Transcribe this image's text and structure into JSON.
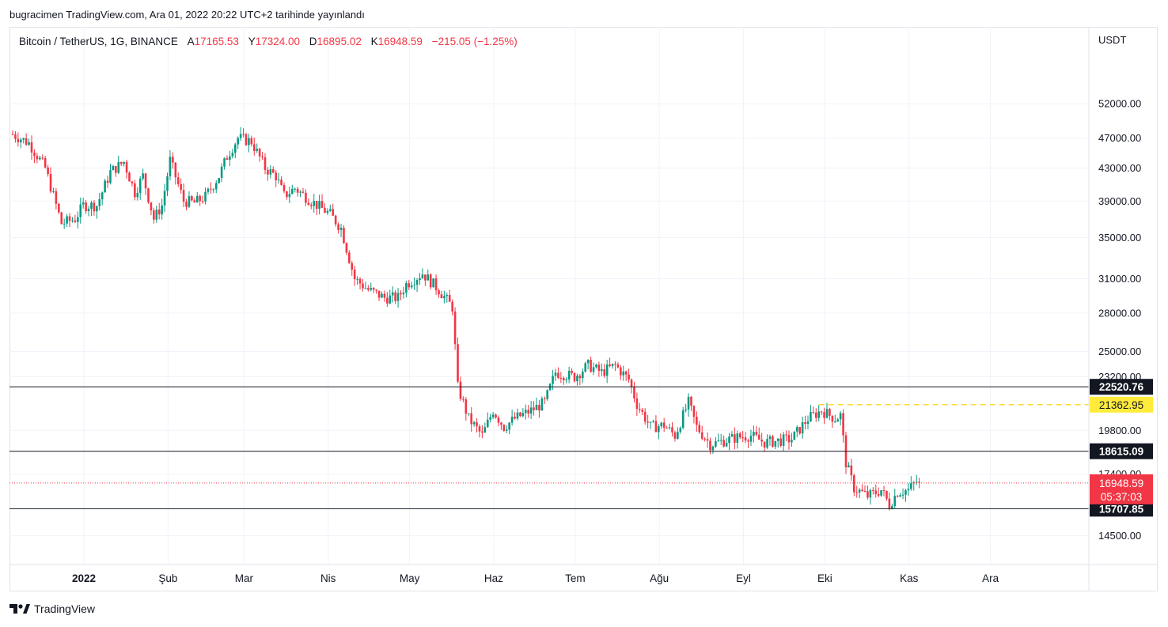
{
  "publication": "bugracimen TradingView.com, Ara 01, 2022 20:22 UTC+2 tarihinde yayınlandı",
  "legend": {
    "symbol": "Bitcoin / TetherUS, 1G, BINANCE",
    "open_label": "A",
    "open": "17165.53",
    "high_label": "Y",
    "high": "17324.00",
    "low_label": "D",
    "low": "16895.02",
    "close_label": "K",
    "close": "16948.59",
    "change": "−215.05 (−1.25%)"
  },
  "currency": "USDT",
  "brand": "TradingView",
  "colors": {
    "up": "#089981",
    "down": "#f23645",
    "grid": "#f0f3fa",
    "hline": "#131722",
    "highlight": "#ffeb3b",
    "dashed": "#fdd835"
  },
  "chart_data": {
    "type": "candlestick",
    "symbol": "BTC/USDT",
    "timeframe": "1D",
    "y_scale": "log",
    "ylim": [
      13600,
      60000
    ],
    "y_ticks": [
      "52000.00",
      "47000.00",
      "43000.00",
      "39000.00",
      "35000.00",
      "31000.00",
      "28000.00",
      "25000.00",
      "23200.00",
      "19800.00",
      "17400.00",
      "14500.00"
    ],
    "x_ticks": [
      "2022",
      "Şub",
      "Mar",
      "Nis",
      "May",
      "Haz",
      "Tem",
      "Ağu",
      "Eyl",
      "Eki",
      "Kas",
      "Ara"
    ],
    "anchors": [
      {
        "d": 0,
        "p": 47500
      },
      {
        "d": 6,
        "p": 46300
      },
      {
        "d": 12,
        "p": 43000
      },
      {
        "d": 18,
        "p": 36500
      },
      {
        "d": 23,
        "p": 37000
      },
      {
        "d": 26,
        "p": 38500
      },
      {
        "d": 31,
        "p": 38500
      },
      {
        "d": 36,
        "p": 42500
      },
      {
        "d": 41,
        "p": 43800
      },
      {
        "d": 45,
        "p": 40000
      },
      {
        "d": 48,
        "p": 42000
      },
      {
        "d": 52,
        "p": 37000
      },
      {
        "d": 55,
        "p": 38500
      },
      {
        "d": 58,
        "p": 44000
      },
      {
        "d": 63,
        "p": 39000
      },
      {
        "d": 67,
        "p": 38800
      },
      {
        "d": 71,
        "p": 39500
      },
      {
        "d": 76,
        "p": 42000
      },
      {
        "d": 79,
        "p": 44500
      },
      {
        "d": 83,
        "p": 47000
      },
      {
        "d": 88,
        "p": 46500
      },
      {
        "d": 93,
        "p": 43000
      },
      {
        "d": 97,
        "p": 42000
      },
      {
        "d": 100,
        "p": 39600
      },
      {
        "d": 104,
        "p": 40500
      },
      {
        "d": 110,
        "p": 39000
      },
      {
        "d": 117,
        "p": 37500
      },
      {
        "d": 121,
        "p": 36000
      },
      {
        "d": 126,
        "p": 31000
      },
      {
        "d": 131,
        "p": 30000
      },
      {
        "d": 137,
        "p": 29300
      },
      {
        "d": 142,
        "p": 29300
      },
      {
        "d": 145,
        "p": 30500
      },
      {
        "d": 151,
        "p": 31500
      },
      {
        "d": 157,
        "p": 30000
      },
      {
        "d": 162,
        "p": 28500
      },
      {
        "d": 164,
        "p": 22500
      },
      {
        "d": 168,
        "p": 20500
      },
      {
        "d": 173,
        "p": 19500
      },
      {
        "d": 177,
        "p": 21000
      },
      {
        "d": 181,
        "p": 20000
      },
      {
        "d": 185,
        "p": 20500
      },
      {
        "d": 191,
        "p": 21000
      },
      {
        "d": 196,
        "p": 21500
      },
      {
        "d": 200,
        "p": 23500
      },
      {
        "d": 207,
        "p": 23200
      },
      {
        "d": 212,
        "p": 24000
      },
      {
        "d": 217,
        "p": 23500
      },
      {
        "d": 222,
        "p": 24000
      },
      {
        "d": 227,
        "p": 23000
      },
      {
        "d": 230,
        "p": 21400
      },
      {
        "d": 235,
        "p": 20000
      },
      {
        "d": 240,
        "p": 20100
      },
      {
        "d": 244,
        "p": 19500
      },
      {
        "d": 249,
        "p": 21500
      },
      {
        "d": 252,
        "p": 20000
      },
      {
        "d": 257,
        "p": 19000
      },
      {
        "d": 262,
        "p": 19200
      },
      {
        "d": 267,
        "p": 19400
      },
      {
        "d": 272,
        "p": 19500
      },
      {
        "d": 277,
        "p": 19100
      },
      {
        "d": 282,
        "p": 19200
      },
      {
        "d": 287,
        "p": 19300
      },
      {
        "d": 293,
        "p": 20500
      },
      {
        "d": 298,
        "p": 21000
      },
      {
        "d": 303,
        "p": 20500
      },
      {
        "d": 305,
        "p": 20700
      },
      {
        "d": 307,
        "p": 18000
      },
      {
        "d": 310,
        "p": 16700
      },
      {
        "d": 315,
        "p": 16300
      },
      {
        "d": 320,
        "p": 16600
      },
      {
        "d": 323,
        "p": 15900
      },
      {
        "d": 326,
        "p": 16500
      },
      {
        "d": 330,
        "p": 16600
      },
      {
        "d": 334,
        "p": 17165
      }
    ],
    "horizontal_lines": [
      {
        "label": "22520.76",
        "value": 22520.76,
        "style": "solid"
      },
      {
        "label": "21362.95",
        "value": 21362.95,
        "style": "dashed",
        "from_day": 297
      },
      {
        "label": "18615.09",
        "value": 18615.09,
        "style": "solid"
      },
      {
        "label": "15707.85",
        "value": 15707.85,
        "style": "solid"
      }
    ],
    "last_price": {
      "value": "16948.59",
      "countdown": "05:37:03"
    }
  }
}
